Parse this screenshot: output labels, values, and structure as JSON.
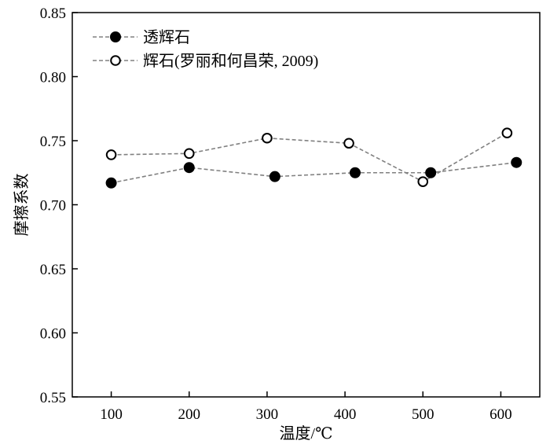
{
  "chart_data": {
    "type": "line",
    "title": "",
    "xlabel": "温度/℃",
    "ylabel": "摩擦系数",
    "xlim": [
      50,
      650
    ],
    "ylim": [
      0.55,
      0.85
    ],
    "xticks": [
      100,
      200,
      300,
      400,
      500,
      600
    ],
    "yticks": [
      0.55,
      0.6,
      0.65,
      0.7,
      0.75,
      0.8,
      0.85
    ],
    "xtick_labels": [
      "100",
      "200",
      "300",
      "400",
      "500",
      "600"
    ],
    "ytick_labels": [
      "0.55",
      "0.60",
      "0.65",
      "0.70",
      "0.75",
      "0.80",
      "0.85"
    ],
    "legend_position": "top-left",
    "grid": false,
    "series": [
      {
        "name": "透辉石",
        "marker": "filled-circle",
        "line_color": "#808080",
        "x": [
          100,
          200,
          310,
          413,
          510,
          620
        ],
        "y": [
          0.717,
          0.729,
          0.722,
          0.725,
          0.725,
          0.733
        ]
      },
      {
        "name": "辉石(罗丽和何昌荣, 2009)",
        "marker": "open-circle",
        "line_color": "#808080",
        "x": [
          100,
          200,
          300,
          405,
          500,
          608
        ],
        "y": [
          0.739,
          0.74,
          0.752,
          0.748,
          0.718,
          0.756
        ]
      }
    ]
  }
}
